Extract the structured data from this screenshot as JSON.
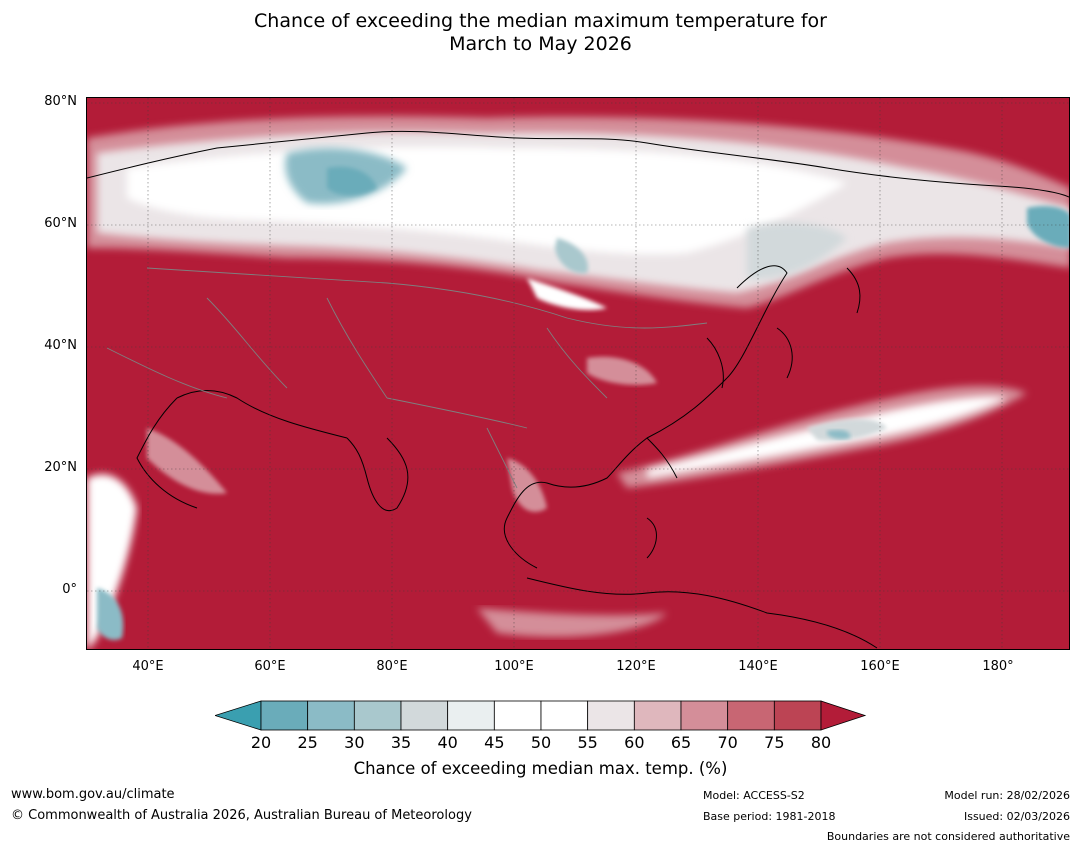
{
  "title": {
    "line1": "Chance of exceeding the median maximum temperature for",
    "line2": "March to May 2026"
  },
  "map": {
    "lat_labels": [
      "80°N",
      "60°N",
      "40°N",
      "20°N",
      "0°"
    ],
    "lon_labels": [
      "40°E",
      "60°E",
      "80°E",
      "100°E",
      "120°E",
      "140°E",
      "160°E",
      "180°"
    ],
    "extent": {
      "lon_min": 30,
      "lon_max": 191,
      "lat_min": -10,
      "lat_max": 80
    }
  },
  "colorbar": {
    "ticks": [
      "20",
      "25",
      "30",
      "35",
      "40",
      "45",
      "50",
      "55",
      "60",
      "65",
      "70",
      "75",
      "80"
    ],
    "colors": [
      "#3a9fb0",
      "#6aacba",
      "#8bbbc6",
      "#a9c8cd",
      "#d2d9db",
      "#eaeff0",
      "#ffffff",
      "#ffffff",
      "#ebe5e7",
      "#dfb7bd",
      "#d48e99",
      "#c86673",
      "#bc4454",
      "#b31c38"
    ],
    "label": "Chance of exceeding median max. temp. (%)"
  },
  "footer": {
    "url": "www.bom.gov.au/climate",
    "copyright": "© Commonwealth of Australia 2026, Australian Bureau of Meteorology",
    "model": "Model: ACCESS-S2",
    "base_period": "Base period: 1981-2018",
    "model_run": "Model run: 28/02/2026",
    "issued": "Issued: 02/03/2026",
    "disclaimer": "Boundaries are not considered authoritative"
  }
}
